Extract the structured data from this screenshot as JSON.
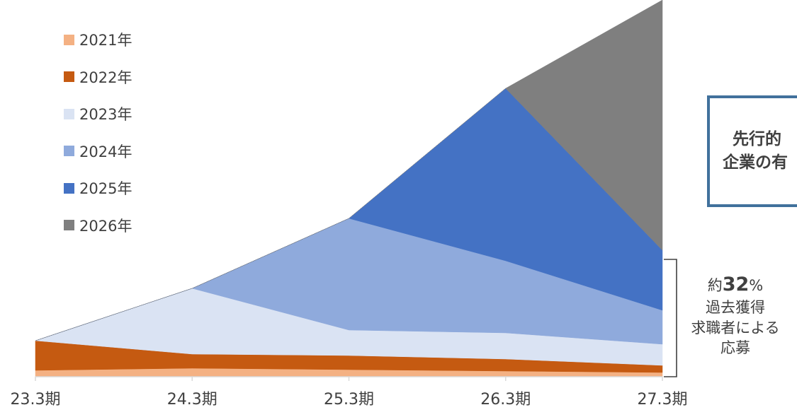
{
  "chart_data": {
    "type": "area",
    "stacked": true,
    "categories": [
      "23.3期",
      "24.3期",
      "25.3期",
      "26.3期",
      "27.3期"
    ],
    "series": [
      {
        "name": "2021年",
        "color": "#F4B183",
        "values": [
          9,
          12,
          10,
          8,
          6
        ]
      },
      {
        "name": "2022年",
        "color": "#C55A11",
        "values": [
          42,
          20,
          20,
          17,
          10
        ]
      },
      {
        "name": "2023年",
        "color": "#DAE3F3",
        "values": [
          0,
          93,
          36,
          37,
          30
        ]
      },
      {
        "name": "2024年",
        "color": "#8FAADC",
        "values": [
          0,
          0,
          158,
          102,
          48
        ]
      },
      {
        "name": "2025年",
        "color": "#4472C4",
        "values": [
          0,
          0,
          0,
          244,
          85
        ]
      },
      {
        "name": "2026年",
        "color": "#7F7F7F",
        "values": [
          0,
          0,
          0,
          0,
          354
        ]
      }
    ],
    "ylim": [
      0,
      525
    ],
    "legend": "top-left"
  },
  "callout": {
    "line1": "先行的",
    "line2": "企業の有"
  },
  "annotation": {
    "prefix": "約",
    "value": "32",
    "unit": "%",
    "line2": "過去獲得",
    "line3": "求職者による",
    "line4": "応募"
  }
}
